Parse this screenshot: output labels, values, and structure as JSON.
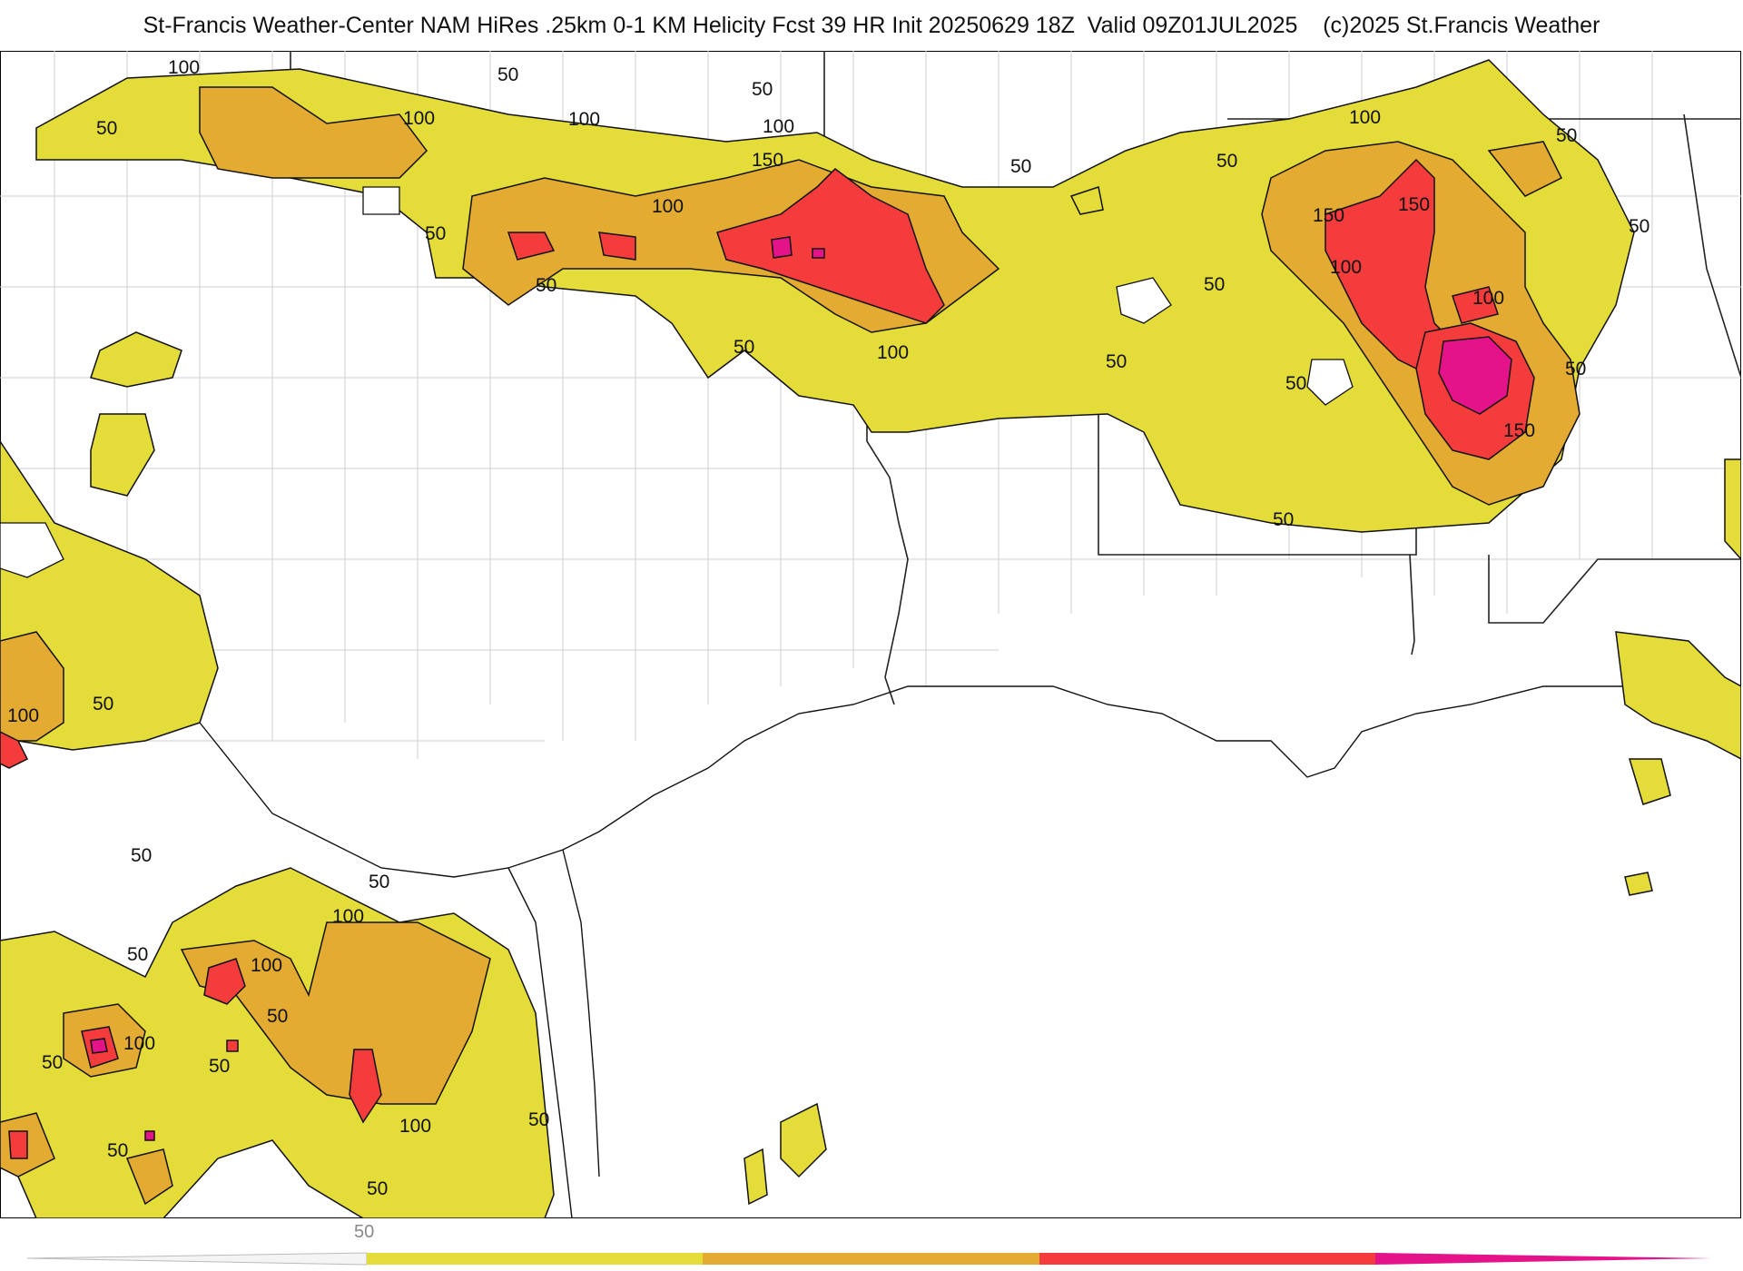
{
  "header": {
    "title": "St-Francis Weather-Center NAM HiRes .25km 0-1 KM Helicity Fcst 39 HR Init 20250629 18Z  Valid 09Z01JUL2025    (c)2025 St.Francis Weather"
  },
  "colors": {
    "level_50": "#e4dc38",
    "level_100": "#e3ab32",
    "level_150": "#f43c3c",
    "level_200": "#e5138a",
    "outline": "#111111",
    "county_lines": "#c8c8c8",
    "state_lines": "#222222"
  },
  "contour_labels": [
    {
      "text": "100"
    },
    {
      "text": "50"
    },
    {
      "text": "100"
    },
    {
      "text": "50"
    },
    {
      "text": "100"
    },
    {
      "text": "50"
    },
    {
      "text": "100"
    },
    {
      "text": "150"
    },
    {
      "text": "100"
    },
    {
      "text": "50"
    },
    {
      "text": "50"
    },
    {
      "text": "50"
    },
    {
      "text": "100"
    },
    {
      "text": "50"
    },
    {
      "text": "100"
    },
    {
      "text": "50"
    },
    {
      "text": "150"
    },
    {
      "text": "150"
    },
    {
      "text": "100"
    },
    {
      "text": "50"
    },
    {
      "text": "100"
    },
    {
      "text": "50"
    },
    {
      "text": "50"
    },
    {
      "text": "50"
    },
    {
      "text": "150"
    },
    {
      "text": "50"
    },
    {
      "text": "50"
    },
    {
      "text": "50"
    },
    {
      "text": "100"
    },
    {
      "text": "50"
    },
    {
      "text": "50"
    },
    {
      "text": "100"
    },
    {
      "text": "50"
    },
    {
      "text": "100"
    },
    {
      "text": "50"
    },
    {
      "text": "100"
    },
    {
      "text": "50"
    },
    {
      "text": "50"
    },
    {
      "text": "50"
    },
    {
      "text": "100"
    },
    {
      "text": "50"
    },
    {
      "text": "50"
    },
    {
      "text": "50"
    }
  ],
  "colorbar": {
    "tick_label": "50",
    "bands": [
      "#e4dc38",
      "#e3ab32",
      "#f43c3c",
      "#e5138a"
    ]
  }
}
